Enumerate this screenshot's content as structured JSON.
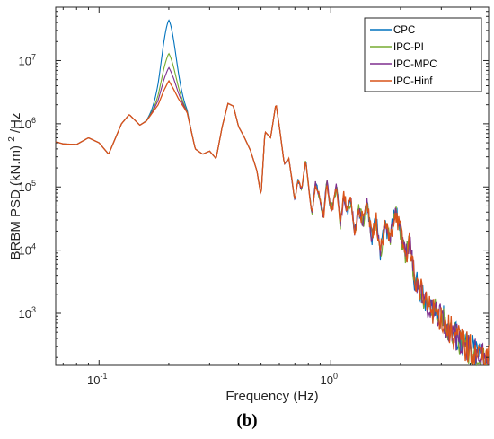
{
  "panel_label": "(b)",
  "chart_data": {
    "type": "line",
    "xlabel": "Frequency (Hz)",
    "ylabel_main": "BRBM PSD (kN.m)",
    "ylabel_sup": "2",
    "ylabel_tail": "/Hz",
    "x_scale": "log",
    "y_scale": "log",
    "xlim": [
      0.065,
      4.8
    ],
    "ylim": [
      150,
      70000000
    ],
    "x_ticks": [
      {
        "value": 0.1,
        "base": "10",
        "exp": "-1"
      },
      {
        "value": 1,
        "base": "10",
        "exp": "0"
      }
    ],
    "y_ticks": [
      {
        "value": 1000,
        "base": "10",
        "exp": "3"
      },
      {
        "value": 10000,
        "base": "10",
        "exp": "4"
      },
      {
        "value": 100000,
        "base": "10",
        "exp": "5"
      },
      {
        "value": 1000000,
        "base": "10",
        "exp": "6"
      },
      {
        "value": 10000000,
        "base": "10",
        "exp": "7"
      }
    ],
    "grid": false,
    "legend_position": "top-right",
    "base_x": [
      0.065,
      0.07,
      0.08,
      0.09,
      0.1,
      0.11,
      0.125,
      0.135,
      0.15,
      0.16,
      0.17,
      0.18,
      0.19,
      0.2,
      0.21,
      0.22,
      0.24,
      0.26,
      0.28,
      0.3,
      0.32,
      0.34,
      0.36,
      0.38,
      0.4,
      0.42,
      0.45,
      0.48,
      0.5,
      0.52,
      0.55,
      0.58,
      0.6,
      0.63,
      0.66,
      0.7,
      0.72,
      0.75,
      0.78,
      0.8,
      0.83,
      0.86,
      0.9,
      0.93,
      0.96,
      1.0,
      1.03,
      1.06,
      1.1,
      1.14,
      1.18,
      1.22,
      1.27,
      1.32,
      1.38,
      1.44,
      1.5,
      1.57,
      1.64,
      1.72,
      1.8,
      1.9,
      2.0,
      2.1,
      2.2,
      2.3,
      2.45,
      2.6,
      2.8,
      3.0,
      3.2,
      3.45,
      3.7,
      4.0,
      4.3,
      4.6,
      4.8
    ],
    "base_y": [
      520000,
      480000,
      470000,
      600000,
      500000,
      330000,
      1000000,
      1400000,
      950000,
      1100000,
      1500000,
      2000000,
      3300000,
      4800000,
      3500000,
      2500000,
      1500000,
      400000,
      330000,
      370000,
      280000,
      900000,
      2100000,
      1900000,
      900000,
      650000,
      380000,
      180000,
      72000,
      750000,
      600000,
      2100000,
      900000,
      230000,
      280000,
      60000,
      130000,
      90000,
      270000,
      110000,
      38000,
      120000,
      60000,
      32000,
      130000,
      45000,
      55000,
      110000,
      25000,
      75000,
      40000,
      65000,
      18000,
      45000,
      28000,
      55000,
      15000,
      30000,
      9000,
      25000,
      14000,
      45000,
      20000,
      8000,
      14000,
      3500,
      2200,
      1300,
      1100,
      900,
      600,
      450,
      350,
      260,
      230,
      180,
      170
    ],
    "series": [
      {
        "name": "CPC",
        "color": "#0072BD",
        "peak": 44000000,
        "jitter": 0.95,
        "seed": 11
      },
      {
        "name": "IPC-PI",
        "color": "#77AC30",
        "peak": 13000000,
        "jitter": 0.9,
        "seed": 23
      },
      {
        "name": "IPC-MPC",
        "color": "#7E2F8E",
        "peak": 7800000,
        "jitter": 0.88,
        "seed": 37
      },
      {
        "name": "IPC-Hinf",
        "color": "#D95319",
        "peak": 4800000,
        "jitter": 1.0,
        "seed": 53
      }
    ]
  }
}
